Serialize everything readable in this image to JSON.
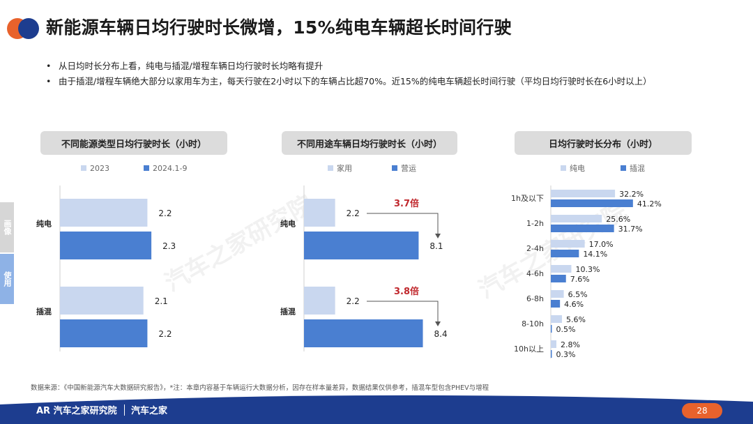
{
  "title": "新能源车辆日均行驶时长微增，15%纯电车辆超长时间行驶",
  "bullets": [
    "从日均时长分布上看，纯电与插混/增程车辆日均行驶时长均略有提升",
    "由于插混/增程车辆绝大部分以家用车为主，每天行驶在2小时以下的车辆占比超70%。近15%的纯电车辆超长时间行驶（平均日均行驶时长在6小时以上）"
  ],
  "side_tabs": [
    "画像",
    "使用"
  ],
  "watermark": "汽车之家研究院",
  "colors": {
    "light": "#c9d7ef",
    "dark": "#4a7fd1",
    "accent": "#c0282d",
    "orange": "#e8622c",
    "navy": "#1d3d8f"
  },
  "chart_data": [
    {
      "type": "bar",
      "title": "不同能源类型日均行驶时长（小时）",
      "orientation": "horizontal",
      "categories": [
        "纯电",
        "插混"
      ],
      "series": [
        {
          "name": "2023",
          "values": [
            2.2,
            2.1
          ]
        },
        {
          "name": "2024.1-9",
          "values": [
            2.3,
            2.2
          ]
        }
      ],
      "legend": "top",
      "grid": false
    },
    {
      "type": "bar",
      "title": "不同用途车辆日均行驶时长（小时）",
      "orientation": "horizontal",
      "categories": [
        "纯电",
        "插混"
      ],
      "series": [
        {
          "name": "家用",
          "values": [
            2.2,
            2.2
          ]
        },
        {
          "name": "营运",
          "values": [
            8.1,
            8.4
          ]
        }
      ],
      "annotations": [
        "3.7倍",
        "3.8倍"
      ],
      "legend": "top",
      "grid": false
    },
    {
      "type": "bar",
      "title": "日均行驶时长分布（小时）",
      "orientation": "horizontal",
      "categories": [
        "1h及以下",
        "1-2h",
        "2-4h",
        "4-6h",
        "6-8h",
        "8-10h",
        "10h以上"
      ],
      "series": [
        {
          "name": "纯电",
          "values": [
            32.2,
            25.6,
            17.0,
            10.3,
            6.5,
            5.6,
            2.8
          ],
          "labels": [
            "32.2%",
            "25.6%",
            "17.0%",
            "10.3%",
            "6.5%",
            "5.6%",
            "2.8%"
          ]
        },
        {
          "name": "插混",
          "values": [
            41.2,
            31.7,
            14.1,
            7.6,
            4.6,
            0.5,
            0.3
          ],
          "labels": [
            "41.2%",
            "31.7%",
            "14.1%",
            "7.6%",
            "4.6%",
            "0.5%",
            "0.3%"
          ]
        }
      ],
      "legend": "top",
      "grid": false
    }
  ],
  "source": "数据来源：《中国新能源汽车大数据研究报告》，*注：本章内容基于车辆运行大数据分析，因存在样本量差异，数据结果仅供参考，插混车型包含PHEV与增程",
  "footer": {
    "brand1": "AR 汽车之家研究院",
    "brand2": "汽车之家",
    "page": "28"
  }
}
